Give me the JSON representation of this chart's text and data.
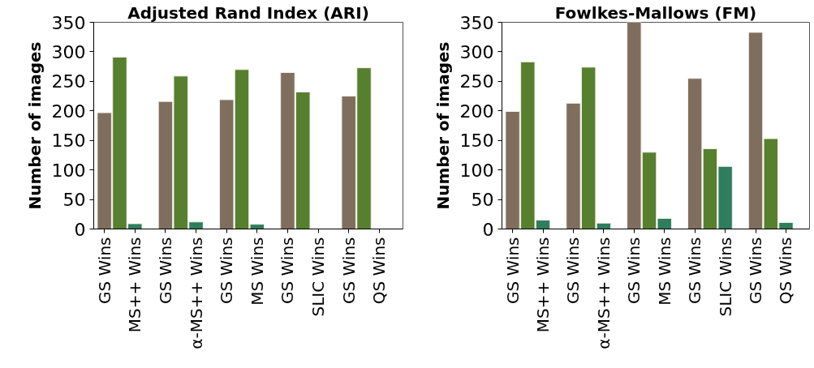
{
  "chart_data": [
    {
      "type": "bar",
      "title": "Adjusted Rand Index (ARI)",
      "ylabel": "Number of images",
      "categories": [
        "GS Wins",
        null,
        "MS++ Wins",
        "GS Wins",
        null,
        "α-MS++ Wins",
        "GS Wins",
        null,
        "MS Wins",
        "GS Wins",
        null,
        "SLIC Wins",
        "GS Wins",
        null,
        "QS Wins"
      ],
      "values": [
        197,
        291,
        9,
        216,
        259,
        12,
        219,
        270,
        8,
        265,
        232,
        null,
        225,
        273,
        null
      ],
      "colors": [
        "#7f6e5e",
        "#567f2e",
        "#2e7d5c",
        "#7f6e5e",
        "#567f2e",
        "#2e7d5c",
        "#7f6e5e",
        "#567f2e",
        "#2e7d5c",
        "#7f6e5e",
        "#567f2e",
        null,
        "#7f6e5e",
        "#567f2e",
        null
      ],
      "ylim": [
        0,
        350
      ],
      "yticks": [
        0,
        50,
        100,
        150,
        200,
        250,
        300,
        350
      ],
      "grid": false,
      "legend": false
    },
    {
      "type": "bar",
      "title": "Fowlkes-Mallows (FM)",
      "ylabel": "Number of images",
      "categories": [
        "GS Wins",
        null,
        "MS++ Wins",
        "GS Wins",
        null,
        "α-MS++ Wins",
        "GS Wins",
        null,
        "MS Wins",
        "GS Wins",
        null,
        "SLIC Wins",
        "GS Wins",
        null,
        "QS Wins"
      ],
      "values": [
        199,
        283,
        15,
        213,
        274,
        10,
        350,
        130,
        18,
        255,
        136,
        106,
        333,
        153,
        11
      ],
      "colors": [
        "#7f6e5e",
        "#567f2e",
        "#2e7d5c",
        "#7f6e5e",
        "#567f2e",
        "#2e7d5c",
        "#7f6e5e",
        "#567f2e",
        "#2e7d5c",
        "#7f6e5e",
        "#567f2e",
        "#2e7d5c",
        "#7f6e5e",
        "#567f2e",
        "#2e7d5c"
      ],
      "ylim": [
        0,
        350
      ],
      "yticks": [
        0,
        50,
        100,
        150,
        200,
        250,
        300,
        350
      ],
      "grid": false,
      "legend": false
    }
  ]
}
